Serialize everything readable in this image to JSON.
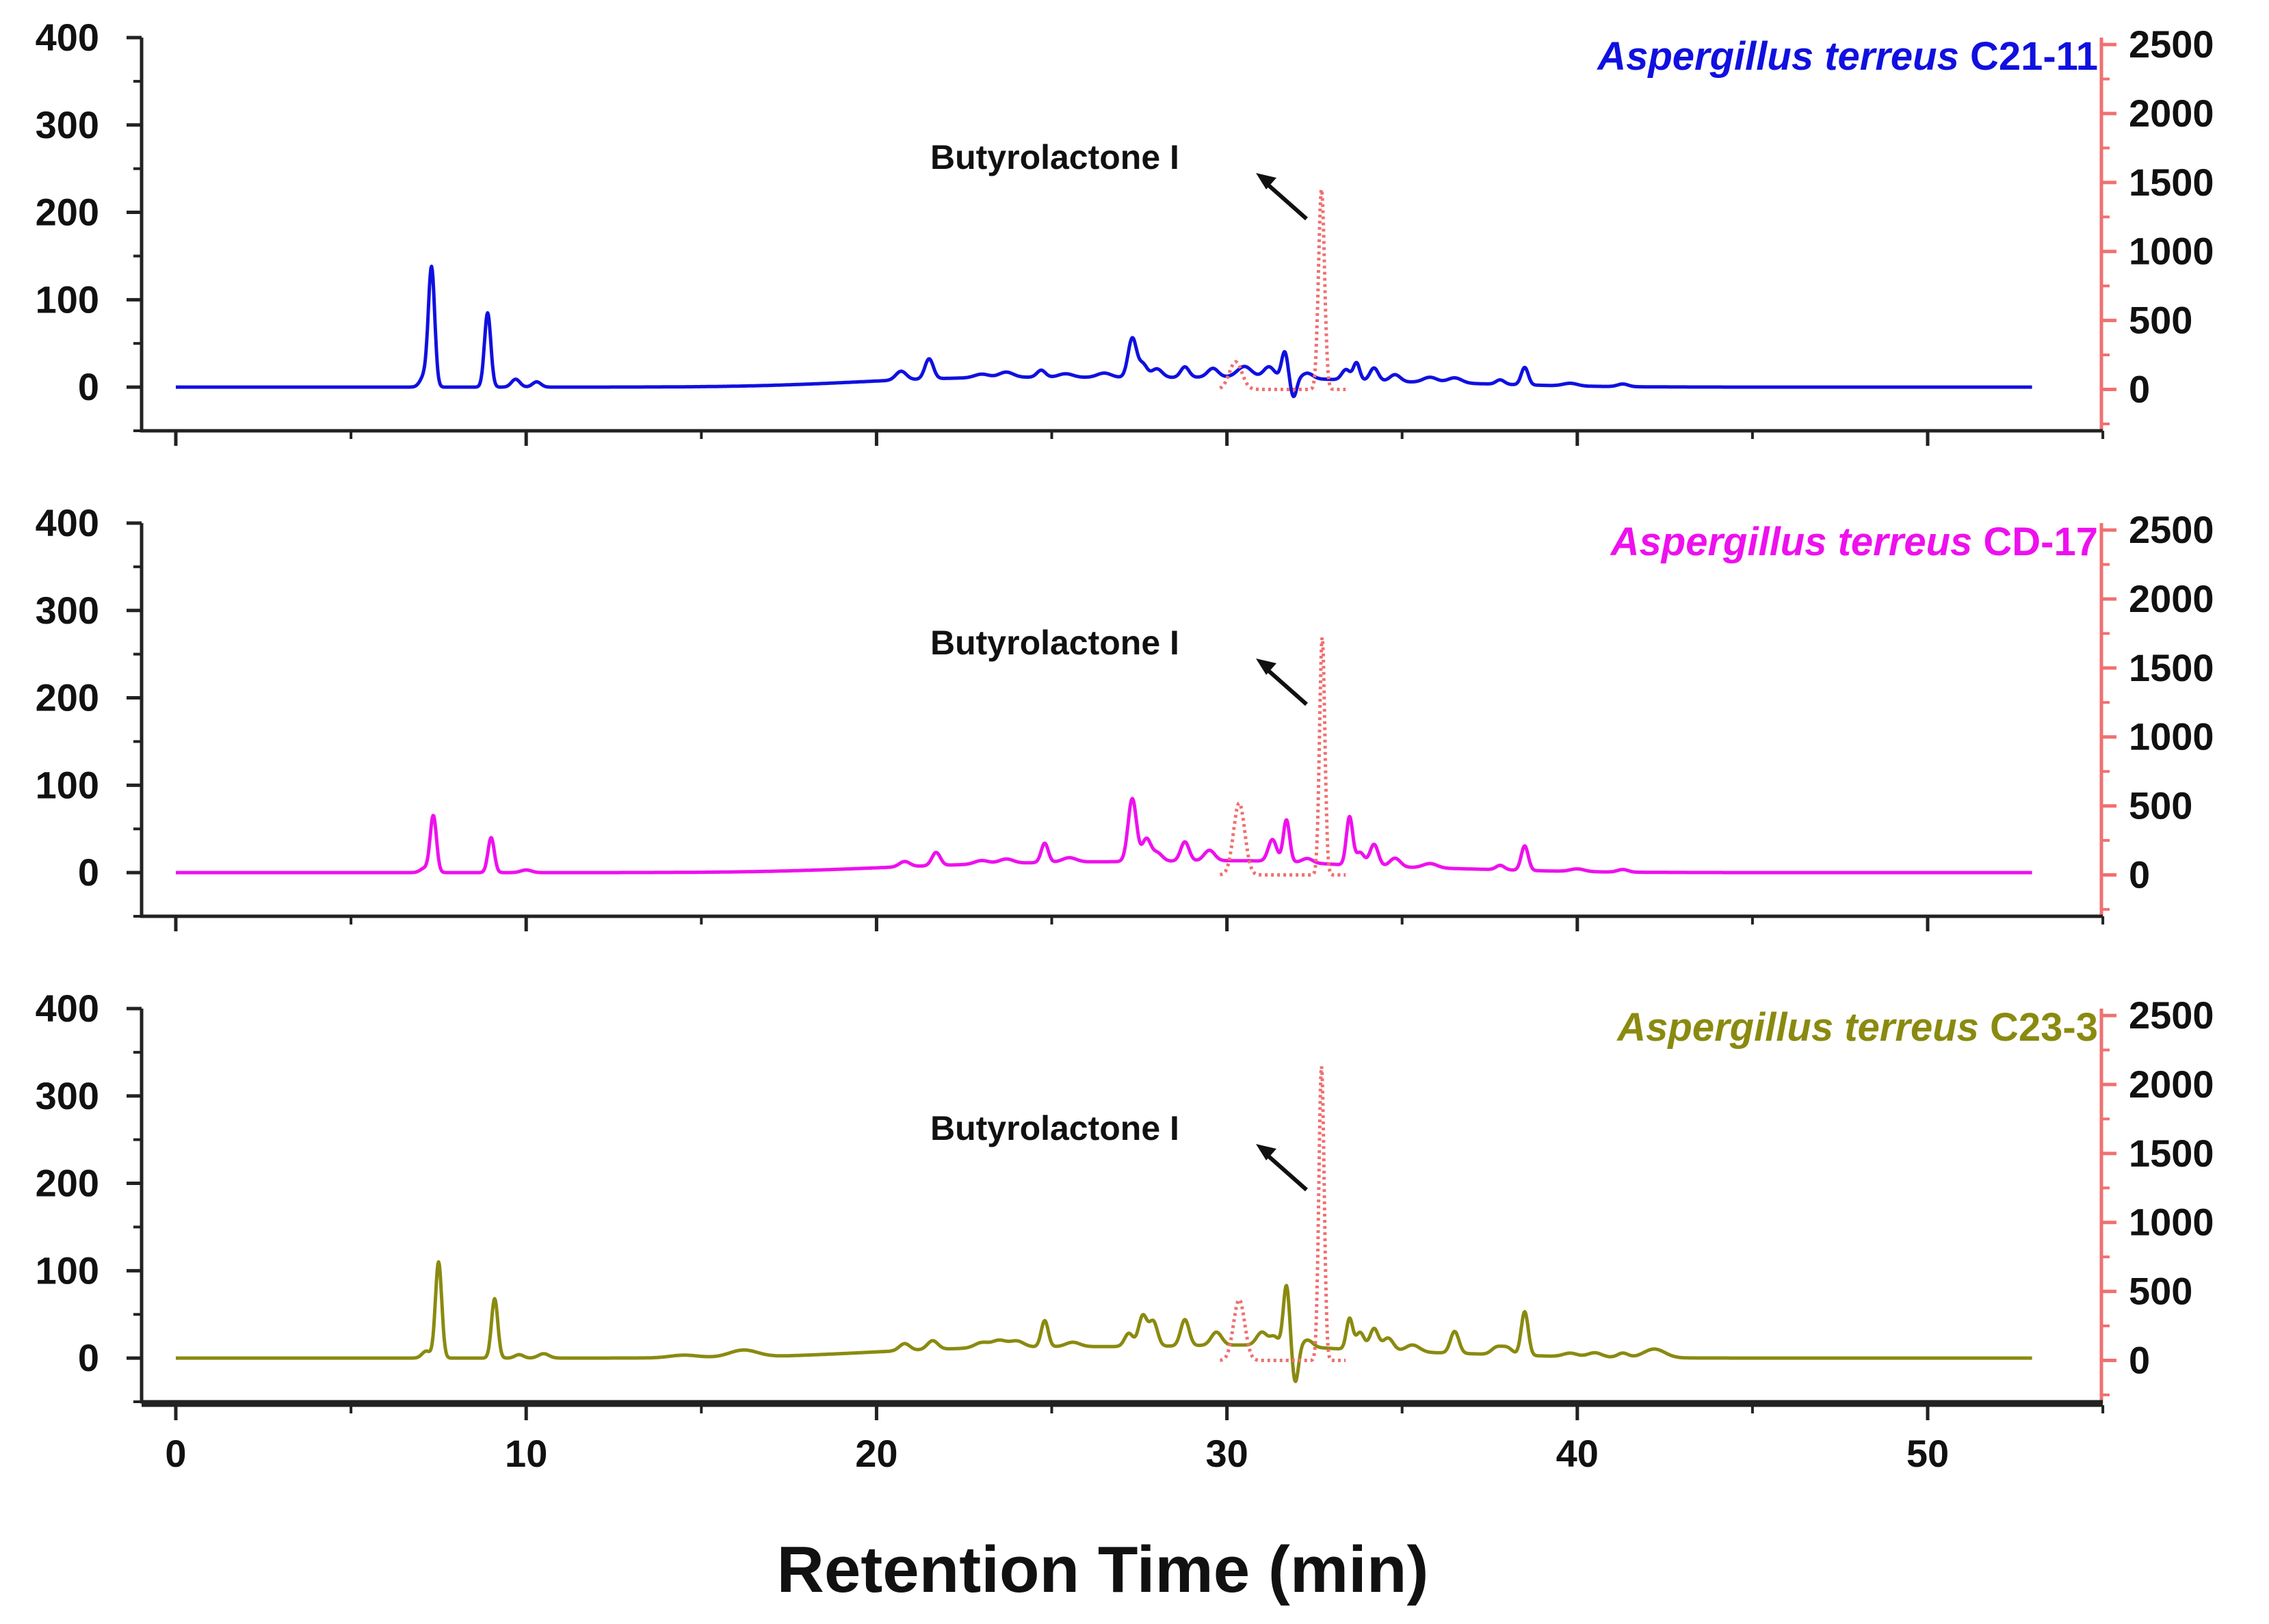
{
  "chart_data": {
    "type": "line",
    "xlabel": "Retention Time (min)",
    "xlim": [
      -0.5,
      55
    ],
    "x_ticks": [
      0,
      10,
      20,
      30,
      40,
      50
    ],
    "x_tick_labels": [
      "0",
      "10",
      "20",
      "30",
      "40",
      "50"
    ],
    "left_ylim": [
      -50,
      400
    ],
    "left_ticks": [
      0,
      100,
      200,
      300,
      400
    ],
    "left_tick_labels": [
      "0",
      "100",
      "200",
      "300",
      "400"
    ],
    "right_ylim": [
      -300,
      2550
    ],
    "right_ticks": [
      0,
      500,
      1000,
      1500,
      2000,
      2500
    ],
    "right_tick_labels": [
      "0",
      "500",
      "1000",
      "1500",
      "2000",
      "2500"
    ],
    "standard_color": "#f07070",
    "annotation_text": "Butyrolactone I",
    "panels": [
      {
        "species": "Aspergillus terreus",
        "strain": "C21-11",
        "color": "#1010e0",
        "sample_peaks": [
          [
            7.1,
            13,
            0.12
          ],
          [
            7.3,
            135,
            0.09
          ],
          [
            8.9,
            85,
            0.09
          ],
          [
            9.7,
            9,
            0.12
          ],
          [
            10.3,
            6,
            0.12
          ],
          [
            20.7,
            10,
            0.15
          ],
          [
            21.5,
            23,
            0.12
          ],
          [
            23.0,
            4,
            0.2
          ],
          [
            23.7,
            6,
            0.2
          ],
          [
            24.7,
            8,
            0.12
          ],
          [
            25.4,
            4,
            0.2
          ],
          [
            26.5,
            5,
            0.2
          ],
          [
            27.3,
            45,
            0.12
          ],
          [
            27.6,
            15,
            0.12
          ],
          [
            28.0,
            10,
            0.15
          ],
          [
            28.8,
            12,
            0.12
          ],
          [
            29.6,
            10,
            0.15
          ],
          [
            30.5,
            12,
            0.2
          ],
          [
            31.2,
            12,
            0.15
          ],
          [
            31.65,
            30,
            0.09
          ],
          [
            31.9,
            -22,
            0.09
          ],
          [
            32.3,
            6,
            0.15
          ],
          [
            33.4,
            12,
            0.12
          ],
          [
            33.7,
            20,
            0.09
          ],
          [
            34.2,
            15,
            0.12
          ],
          [
            34.8,
            8,
            0.15
          ],
          [
            35.8,
            6,
            0.2
          ],
          [
            36.5,
            6,
            0.2
          ],
          [
            37.8,
            5,
            0.12
          ],
          [
            38.5,
            20,
            0.1
          ],
          [
            39.8,
            3,
            0.2
          ],
          [
            41.3,
            3,
            0.15
          ]
        ],
        "standard_peaks": [
          [
            30.25,
            200,
            0.18
          ],
          [
            32.7,
            1450,
            0.085
          ]
        ],
        "broad_bumps": [
          [
            22,
            8,
            3
          ],
          [
            27,
            8,
            3
          ],
          [
            31,
            6,
            2
          ],
          [
            35,
            5,
            3
          ]
        ]
      },
      {
        "species": "Aspergillus terreus",
        "strain": "CD-17",
        "color": "#ee10ee",
        "sample_peaks": [
          [
            7.1,
            5,
            0.12
          ],
          [
            7.35,
            65,
            0.09
          ],
          [
            9.0,
            40,
            0.09
          ],
          [
            10.0,
            3,
            0.15
          ],
          [
            20.8,
            6,
            0.15
          ],
          [
            21.7,
            15,
            0.12
          ],
          [
            23.0,
            4,
            0.2
          ],
          [
            23.7,
            5,
            0.2
          ],
          [
            24.8,
            22,
            0.1
          ],
          [
            25.5,
            5,
            0.2
          ],
          [
            27.3,
            72,
            0.12
          ],
          [
            27.7,
            25,
            0.12
          ],
          [
            28.0,
            10,
            0.15
          ],
          [
            28.8,
            22,
            0.12
          ],
          [
            29.5,
            12,
            0.15
          ],
          [
            31.3,
            25,
            0.12
          ],
          [
            31.7,
            48,
            0.09
          ],
          [
            32.3,
            5,
            0.15
          ],
          [
            33.5,
            55,
            0.09
          ],
          [
            33.8,
            15,
            0.12
          ],
          [
            34.2,
            25,
            0.12
          ],
          [
            34.8,
            10,
            0.15
          ],
          [
            35.8,
            5,
            0.2
          ],
          [
            37.8,
            5,
            0.12
          ],
          [
            38.5,
            28,
            0.1
          ],
          [
            40.0,
            3,
            0.2
          ],
          [
            41.3,
            3,
            0.15
          ]
        ],
        "standard_peaks": [
          [
            30.35,
            520,
            0.16
          ],
          [
            32.72,
            1720,
            0.075
          ]
        ],
        "broad_bumps": [
          [
            22,
            6,
            3
          ],
          [
            27,
            10,
            3
          ],
          [
            31,
            7,
            2
          ],
          [
            35,
            5,
            3
          ]
        ]
      },
      {
        "species": "Aspergillus terreus",
        "strain": "C23-3",
        "color": "#8a8a10",
        "sample_peaks": [
          [
            7.15,
            8,
            0.12
          ],
          [
            7.5,
            110,
            0.09
          ],
          [
            9.1,
            68,
            0.09
          ],
          [
            9.8,
            4,
            0.12
          ],
          [
            10.5,
            5,
            0.15
          ],
          [
            14.5,
            3,
            0.4
          ],
          [
            16.2,
            8,
            0.4
          ],
          [
            20.8,
            8,
            0.15
          ],
          [
            21.6,
            10,
            0.15
          ],
          [
            23.0,
            6,
            0.2
          ],
          [
            23.5,
            8,
            0.2
          ],
          [
            24.0,
            7,
            0.2
          ],
          [
            24.8,
            30,
            0.1
          ],
          [
            25.6,
            5,
            0.2
          ],
          [
            27.2,
            15,
            0.12
          ],
          [
            27.6,
            35,
            0.12
          ],
          [
            27.9,
            28,
            0.12
          ],
          [
            28.8,
            30,
            0.12
          ],
          [
            29.7,
            15,
            0.15
          ],
          [
            31.0,
            15,
            0.15
          ],
          [
            31.35,
            10,
            0.12
          ],
          [
            31.7,
            70,
            0.09
          ],
          [
            31.95,
            -42,
            0.09
          ],
          [
            32.3,
            8,
            0.15
          ],
          [
            33.5,
            35,
            0.09
          ],
          [
            33.8,
            20,
            0.12
          ],
          [
            34.2,
            25,
            0.12
          ],
          [
            34.6,
            15,
            0.15
          ],
          [
            35.3,
            8,
            0.2
          ],
          [
            36.5,
            25,
            0.12
          ],
          [
            37.7,
            8,
            0.15
          ],
          [
            38.0,
            8,
            0.15
          ],
          [
            38.5,
            50,
            0.1
          ],
          [
            39.8,
            4,
            0.2
          ],
          [
            40.5,
            5,
            0.2
          ],
          [
            41.3,
            5,
            0.15
          ],
          [
            42.2,
            10,
            0.3
          ]
        ],
        "standard_peaks": [
          [
            30.35,
            440,
            0.16
          ],
          [
            32.7,
            2130,
            0.075
          ]
        ],
        "broad_bumps": [
          [
            22,
            8,
            3
          ],
          [
            27,
            10,
            3
          ],
          [
            31,
            8,
            2
          ],
          [
            35,
            6,
            3
          ]
        ]
      }
    ]
  }
}
